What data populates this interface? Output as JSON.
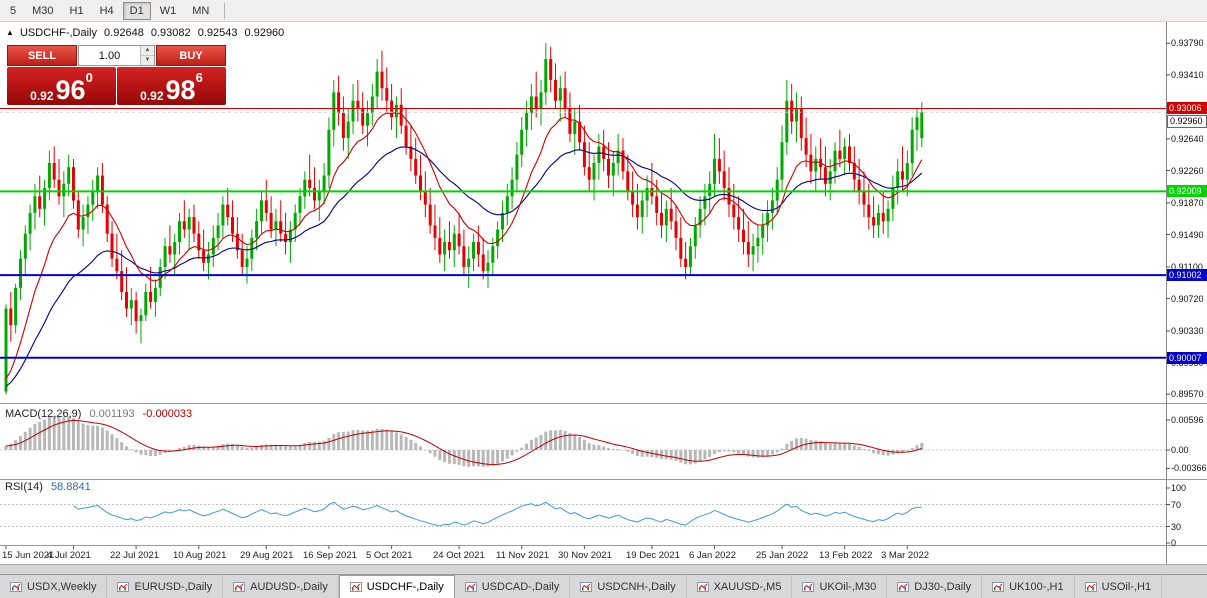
{
  "toolbar": {
    "timeframes": [
      {
        "label": "5",
        "active": false
      },
      {
        "label": "M30",
        "active": false
      },
      {
        "label": "H1",
        "active": false
      },
      {
        "label": "H4",
        "active": false
      },
      {
        "label": "D1",
        "active": true
      },
      {
        "label": "W1",
        "active": false
      },
      {
        "label": "MN",
        "active": false
      }
    ]
  },
  "chart": {
    "info": {
      "collapse_icon": "▲",
      "symbol": "USDCHF-,Daily",
      "open": "0.92648",
      "high": "0.93082",
      "low": "0.92543",
      "close": "0.92960"
    },
    "trade_panel": {
      "sell_label": "SELL",
      "buy_label": "BUY",
      "lot": "1.00",
      "sell_price": {
        "base": "0.92",
        "big": "96",
        "sup": "0"
      },
      "buy_price": {
        "base": "0.92",
        "big": "98",
        "sup": "6"
      }
    },
    "price_axis": {
      "ticks": [
        "0.93790",
        "0.93410",
        "0.93030",
        "0.92640",
        "0.92260",
        "0.91870",
        "0.91490",
        "0.91100",
        "0.90720",
        "0.90330",
        "0.89950",
        "0.89570"
      ]
    },
    "levels": [
      {
        "price": 0.93006,
        "label": "0.93006",
        "color": "#d40000",
        "thickness": 1
      },
      {
        "price": 0.92009,
        "label": "0.92009",
        "color": "#00d500",
        "thickness": 2
      },
      {
        "price": 0.91002,
        "label": "0.91002",
        "color": "#0000d0",
        "thickness": 2
      },
      {
        "price": 0.90007,
        "label": "0.90007",
        "color": "#0000d0",
        "thickness": 2
      }
    ],
    "bid_price": 0.9296,
    "bid_label": "0.92960"
  },
  "macd": {
    "name": "MACD(12,26,9)",
    "value_main": "0.001193",
    "value_signal": "-0.000033",
    "axis": [
      {
        "label": "0.00596",
        "v": 0.00596
      },
      {
        "label": "0.00",
        "v": 0
      },
      {
        "label": "-0.00366",
        "v": -0.00366
      }
    ]
  },
  "rsi": {
    "name": "RSI(14)",
    "value": "58.8841",
    "axis": [
      {
        "label": "100",
        "v": 100
      },
      {
        "label": "70",
        "v": 70
      },
      {
        "label": "30",
        "v": 30
      },
      {
        "label": "0",
        "v": 0
      }
    ],
    "dashed_levels": [
      70,
      30
    ]
  },
  "tabs": [
    {
      "label": "USDX,Weekly",
      "active": false
    },
    {
      "label": "EURUSD-,Daily",
      "active": false
    },
    {
      "label": "AUDUSD-,Daily",
      "active": false
    },
    {
      "label": "USDCHF-,Daily",
      "active": true
    },
    {
      "label": "USDCAD-,Daily",
      "active": false
    },
    {
      "label": "USDCNH-,Daily",
      "active": false
    },
    {
      "label": "XAUUSD-,M5",
      "active": false
    },
    {
      "label": "UKOil-,M30",
      "active": false
    },
    {
      "label": "DJ30-,Daily",
      "active": false
    },
    {
      "label": "UK100-,H1",
      "active": false
    },
    {
      "label": "USOil-,H1",
      "active": false
    }
  ],
  "colors": {
    "bull": "#00a800",
    "bear": "#e60000",
    "ma_fast": "#cc0000",
    "ma_slow": "#000080",
    "macd_hist": "#b8b8b8",
    "macd_signal": "#c00000",
    "rsi_line": "#3f9bd8",
    "axis_text": "#111111",
    "separator": "#999999"
  },
  "chart_data": {
    "type": "candlestick",
    "symbol": "USDCHF-",
    "timeframe": "Daily",
    "y_axis_range": [
      0.895,
      0.9395
    ],
    "x_labels": [
      {
        "label": "15 Jun 2021",
        "i": 0
      },
      {
        "label": "4 Jul 2021",
        "i": 14
      },
      {
        "label": "22 Jul 2021",
        "i": 27
      },
      {
        "label": "10 Aug 2021",
        "i": 40
      },
      {
        "label": "29 Aug 2021",
        "i": 54
      },
      {
        "label": "16 Sep 2021",
        "i": 67
      },
      {
        "label": "5 Oct 2021",
        "i": 80
      },
      {
        "label": "24 Oct 2021",
        "i": 94
      },
      {
        "label": "11 Nov 2021",
        "i": 107
      },
      {
        "label": "30 Nov 2021",
        "i": 120
      },
      {
        "label": "19 Dec 2021",
        "i": 134
      },
      {
        "label": "6 Jan 2022",
        "i": 147
      },
      {
        "label": "25 Jan 2022",
        "i": 161
      },
      {
        "label": "13 Feb 2022",
        "i": 174
      },
      {
        "label": "3 Mar 2022",
        "i": 187
      }
    ],
    "indicators": {
      "ma_fast": {
        "type": "ema",
        "period": 12
      },
      "ma_slow": {
        "type": "ema",
        "period": 30
      },
      "macd": {
        "fast": 12,
        "slow": 26,
        "signal": 9
      },
      "rsi": {
        "period": 14
      }
    },
    "ohlc": [
      [
        0.896,
        0.9065,
        0.8957,
        0.906
      ],
      [
        0.906,
        0.908,
        0.902,
        0.904
      ],
      [
        0.904,
        0.909,
        0.903,
        0.9085
      ],
      [
        0.9085,
        0.913,
        0.907,
        0.912
      ],
      [
        0.912,
        0.916,
        0.91,
        0.915
      ],
      [
        0.915,
        0.9185,
        0.913,
        0.9175
      ],
      [
        0.9175,
        0.921,
        0.9155,
        0.9195
      ],
      [
        0.9195,
        0.922,
        0.917,
        0.918
      ],
      [
        0.918,
        0.9215,
        0.916,
        0.9205
      ],
      [
        0.9205,
        0.925,
        0.919,
        0.9235
      ],
      [
        0.9235,
        0.9255,
        0.9205,
        0.9215
      ],
      [
        0.9215,
        0.924,
        0.9185,
        0.9195
      ],
      [
        0.9195,
        0.9225,
        0.917,
        0.921
      ],
      [
        0.921,
        0.9245,
        0.9195,
        0.923
      ],
      [
        0.923,
        0.924,
        0.918,
        0.919
      ],
      [
        0.919,
        0.92,
        0.9145,
        0.9155
      ],
      [
        0.9155,
        0.9185,
        0.9135,
        0.917
      ],
      [
        0.917,
        0.9195,
        0.915,
        0.9185
      ],
      [
        0.9185,
        0.9215,
        0.9165,
        0.92
      ],
      [
        0.92,
        0.923,
        0.918,
        0.922
      ],
      [
        0.922,
        0.9235,
        0.9175,
        0.9185
      ],
      [
        0.9185,
        0.9195,
        0.914,
        0.915
      ],
      [
        0.915,
        0.9165,
        0.911,
        0.912
      ],
      [
        0.912,
        0.915,
        0.9095,
        0.9105
      ],
      [
        0.9105,
        0.913,
        0.907,
        0.908
      ],
      [
        0.908,
        0.911,
        0.905,
        0.906
      ],
      [
        0.906,
        0.9085,
        0.904,
        0.907
      ],
      [
        0.907,
        0.908,
        0.903,
        0.9045
      ],
      [
        0.9045,
        0.906,
        0.9018,
        0.9052
      ],
      [
        0.9052,
        0.909,
        0.9045,
        0.908
      ],
      [
        0.908,
        0.911,
        0.906,
        0.9068
      ],
      [
        0.9068,
        0.9095,
        0.905,
        0.9085
      ],
      [
        0.9085,
        0.912,
        0.9075,
        0.911
      ],
      [
        0.911,
        0.9145,
        0.9095,
        0.9135
      ],
      [
        0.9135,
        0.916,
        0.9115,
        0.9125
      ],
      [
        0.9125,
        0.915,
        0.91,
        0.914
      ],
      [
        0.914,
        0.9175,
        0.9125,
        0.9165
      ],
      [
        0.9165,
        0.919,
        0.9145,
        0.9155
      ],
      [
        0.9155,
        0.918,
        0.913,
        0.917
      ],
      [
        0.917,
        0.9185,
        0.914,
        0.915
      ],
      [
        0.915,
        0.9165,
        0.912,
        0.913
      ],
      [
        0.913,
        0.9155,
        0.9105,
        0.9115
      ],
      [
        0.9115,
        0.914,
        0.9095,
        0.9125
      ],
      [
        0.9125,
        0.916,
        0.911,
        0.9145
      ],
      [
        0.9145,
        0.9175,
        0.913,
        0.916
      ],
      [
        0.916,
        0.9195,
        0.9145,
        0.9185
      ],
      [
        0.9185,
        0.9205,
        0.916,
        0.917
      ],
      [
        0.917,
        0.919,
        0.914,
        0.915
      ],
      [
        0.915,
        0.917,
        0.912,
        0.913
      ],
      [
        0.913,
        0.915,
        0.91,
        0.911
      ],
      [
        0.911,
        0.9135,
        0.909,
        0.912
      ],
      [
        0.912,
        0.9155,
        0.9105,
        0.9145
      ],
      [
        0.9145,
        0.918,
        0.913,
        0.9165
      ],
      [
        0.9165,
        0.92,
        0.915,
        0.919
      ],
      [
        0.919,
        0.9215,
        0.9165,
        0.9175
      ],
      [
        0.9175,
        0.9195,
        0.9145,
        0.9155
      ],
      [
        0.9155,
        0.918,
        0.9135,
        0.9165
      ],
      [
        0.9165,
        0.919,
        0.914,
        0.915
      ],
      [
        0.915,
        0.9175,
        0.9125,
        0.914
      ],
      [
        0.914,
        0.9165,
        0.9115,
        0.9155
      ],
      [
        0.9155,
        0.9185,
        0.914,
        0.9175
      ],
      [
        0.9175,
        0.9205,
        0.916,
        0.9195
      ],
      [
        0.9195,
        0.9225,
        0.918,
        0.9215
      ],
      [
        0.9215,
        0.9245,
        0.9195,
        0.9205
      ],
      [
        0.9205,
        0.923,
        0.918,
        0.919
      ],
      [
        0.919,
        0.9215,
        0.9165,
        0.92
      ],
      [
        0.92,
        0.9235,
        0.9185,
        0.922
      ],
      [
        0.922,
        0.929,
        0.9205,
        0.9275
      ],
      [
        0.9275,
        0.9335,
        0.9255,
        0.932
      ],
      [
        0.932,
        0.934,
        0.928,
        0.9295
      ],
      [
        0.9295,
        0.9315,
        0.925,
        0.9265
      ],
      [
        0.9265,
        0.93,
        0.924,
        0.9285
      ],
      [
        0.9285,
        0.933,
        0.927,
        0.931
      ],
      [
        0.931,
        0.9335,
        0.9285,
        0.93
      ],
      [
        0.93,
        0.932,
        0.927,
        0.928
      ],
      [
        0.928,
        0.931,
        0.9255,
        0.9295
      ],
      [
        0.9295,
        0.933,
        0.928,
        0.9315
      ],
      [
        0.9315,
        0.936,
        0.93,
        0.9345
      ],
      [
        0.9345,
        0.937,
        0.931,
        0.9325
      ],
      [
        0.9325,
        0.935,
        0.9295,
        0.931
      ],
      [
        0.931,
        0.933,
        0.9275,
        0.929
      ],
      [
        0.929,
        0.9315,
        0.9265,
        0.9305
      ],
      [
        0.9305,
        0.9325,
        0.927,
        0.928
      ],
      [
        0.928,
        0.93,
        0.9245,
        0.9255
      ],
      [
        0.9255,
        0.928,
        0.9225,
        0.924
      ],
      [
        0.924,
        0.9265,
        0.921,
        0.922
      ],
      [
        0.922,
        0.9245,
        0.919,
        0.92
      ],
      [
        0.92,
        0.9225,
        0.917,
        0.9185
      ],
      [
        0.9185,
        0.9205,
        0.915,
        0.916
      ],
      [
        0.916,
        0.9185,
        0.913,
        0.9145
      ],
      [
        0.9145,
        0.917,
        0.9115,
        0.9125
      ],
      [
        0.9125,
        0.9155,
        0.9105,
        0.914
      ],
      [
        0.914,
        0.9165,
        0.912,
        0.913
      ],
      [
        0.913,
        0.916,
        0.911,
        0.915
      ],
      [
        0.915,
        0.9175,
        0.9125,
        0.9135
      ],
      [
        0.9135,
        0.9155,
        0.91,
        0.911
      ],
      [
        0.911,
        0.9135,
        0.9085,
        0.912
      ],
      [
        0.912,
        0.915,
        0.9105,
        0.914
      ],
      [
        0.914,
        0.916,
        0.911,
        0.9125
      ],
      [
        0.9125,
        0.9145,
        0.9095,
        0.9105
      ],
      [
        0.9105,
        0.913,
        0.9085,
        0.9115
      ],
      [
        0.9115,
        0.9145,
        0.91,
        0.9135
      ],
      [
        0.9135,
        0.9165,
        0.912,
        0.9155
      ],
      [
        0.9155,
        0.919,
        0.914,
        0.9175
      ],
      [
        0.9175,
        0.921,
        0.916,
        0.9195
      ],
      [
        0.9195,
        0.923,
        0.918,
        0.9215
      ],
      [
        0.9215,
        0.926,
        0.92,
        0.9245
      ],
      [
        0.9245,
        0.929,
        0.923,
        0.9275
      ],
      [
        0.9275,
        0.931,
        0.9255,
        0.9295
      ],
      [
        0.9295,
        0.933,
        0.9275,
        0.9315
      ],
      [
        0.9315,
        0.9345,
        0.929,
        0.93
      ],
      [
        0.93,
        0.9335,
        0.928,
        0.932
      ],
      [
        0.932,
        0.9379,
        0.9305,
        0.936
      ],
      [
        0.936,
        0.9375,
        0.932,
        0.9335
      ],
      [
        0.9335,
        0.9355,
        0.93,
        0.931
      ],
      [
        0.931,
        0.934,
        0.9285,
        0.9325
      ],
      [
        0.9325,
        0.9345,
        0.929,
        0.93
      ],
      [
        0.93,
        0.932,
        0.926,
        0.927
      ],
      [
        0.927,
        0.93,
        0.9245,
        0.9285
      ],
      [
        0.9285,
        0.9305,
        0.925,
        0.926
      ],
      [
        0.926,
        0.928,
        0.922,
        0.923
      ],
      [
        0.923,
        0.926,
        0.92,
        0.9215
      ],
      [
        0.9215,
        0.9245,
        0.919,
        0.9235
      ],
      [
        0.9235,
        0.927,
        0.9215,
        0.9255
      ],
      [
        0.9255,
        0.9275,
        0.9225,
        0.924
      ],
      [
        0.924,
        0.926,
        0.9205,
        0.922
      ],
      [
        0.922,
        0.925,
        0.9195,
        0.9235
      ],
      [
        0.9235,
        0.927,
        0.922,
        0.925
      ],
      [
        0.925,
        0.9265,
        0.9215,
        0.9225
      ],
      [
        0.9225,
        0.9245,
        0.919,
        0.92
      ],
      [
        0.92,
        0.9225,
        0.917,
        0.9185
      ],
      [
        0.9185,
        0.921,
        0.9155,
        0.917
      ],
      [
        0.917,
        0.92,
        0.915,
        0.919
      ],
      [
        0.919,
        0.922,
        0.917,
        0.9205
      ],
      [
        0.9205,
        0.9235,
        0.9185,
        0.9195
      ],
      [
        0.9195,
        0.9215,
        0.916,
        0.9175
      ],
      [
        0.9175,
        0.92,
        0.9145,
        0.916
      ],
      [
        0.916,
        0.919,
        0.914,
        0.918
      ],
      [
        0.918,
        0.9205,
        0.9155,
        0.9165
      ],
      [
        0.9165,
        0.9185,
        0.913,
        0.9145
      ],
      [
        0.9145,
        0.917,
        0.911,
        0.912
      ],
      [
        0.912,
        0.914,
        0.9095,
        0.911
      ],
      [
        0.911,
        0.9145,
        0.91,
        0.9135
      ],
      [
        0.9135,
        0.917,
        0.912,
        0.916
      ],
      [
        0.916,
        0.9195,
        0.9145,
        0.918
      ],
      [
        0.918,
        0.921,
        0.916,
        0.9195
      ],
      [
        0.9195,
        0.9225,
        0.9175,
        0.921
      ],
      [
        0.921,
        0.927,
        0.9195,
        0.924
      ],
      [
        0.924,
        0.9265,
        0.921,
        0.9225
      ],
      [
        0.9225,
        0.925,
        0.919,
        0.9205
      ],
      [
        0.9205,
        0.923,
        0.917,
        0.9185
      ],
      [
        0.9185,
        0.921,
        0.9155,
        0.917
      ],
      [
        0.917,
        0.9195,
        0.914,
        0.9155
      ],
      [
        0.9155,
        0.918,
        0.9125,
        0.914
      ],
      [
        0.914,
        0.9165,
        0.911,
        0.9125
      ],
      [
        0.9125,
        0.915,
        0.9105,
        0.9135
      ],
      [
        0.9135,
        0.916,
        0.9115,
        0.9145
      ],
      [
        0.9145,
        0.9175,
        0.9125,
        0.916
      ],
      [
        0.916,
        0.919,
        0.914,
        0.9175
      ],
      [
        0.9175,
        0.9205,
        0.9155,
        0.919
      ],
      [
        0.919,
        0.923,
        0.9175,
        0.9215
      ],
      [
        0.9215,
        0.928,
        0.92,
        0.926
      ],
      [
        0.926,
        0.9335,
        0.9245,
        0.931
      ],
      [
        0.931,
        0.933,
        0.927,
        0.9285
      ],
      [
        0.9285,
        0.932,
        0.926,
        0.93
      ],
      [
        0.93,
        0.9315,
        0.925,
        0.9265
      ],
      [
        0.9265,
        0.929,
        0.923,
        0.9245
      ],
      [
        0.9245,
        0.927,
        0.921,
        0.9225
      ],
      [
        0.9225,
        0.9255,
        0.92,
        0.924
      ],
      [
        0.924,
        0.9265,
        0.9215,
        0.923
      ],
      [
        0.923,
        0.9255,
        0.9195,
        0.921
      ],
      [
        0.921,
        0.924,
        0.919,
        0.9225
      ],
      [
        0.9225,
        0.926,
        0.921,
        0.925
      ],
      [
        0.925,
        0.9275,
        0.923,
        0.924
      ],
      [
        0.924,
        0.9265,
        0.922,
        0.9255
      ],
      [
        0.9255,
        0.927,
        0.9225,
        0.9235
      ],
      [
        0.9235,
        0.9255,
        0.92,
        0.9215
      ],
      [
        0.9215,
        0.924,
        0.9185,
        0.92
      ],
      [
        0.92,
        0.9225,
        0.917,
        0.9185
      ],
      [
        0.9185,
        0.921,
        0.9155,
        0.917
      ],
      [
        0.917,
        0.9195,
        0.9145,
        0.916
      ],
      [
        0.916,
        0.9185,
        0.9145,
        0.9175
      ],
      [
        0.9175,
        0.92,
        0.915,
        0.9165
      ],
      [
        0.9165,
        0.919,
        0.9145,
        0.918
      ],
      [
        0.918,
        0.922,
        0.9165,
        0.9205
      ],
      [
        0.9205,
        0.924,
        0.9185,
        0.9225
      ],
      [
        0.9225,
        0.9255,
        0.92,
        0.9215
      ],
      [
        0.9215,
        0.925,
        0.9195,
        0.9235
      ],
      [
        0.9235,
        0.929,
        0.922,
        0.9275
      ],
      [
        0.9275,
        0.93,
        0.925,
        0.929
      ],
      [
        0.92648,
        0.93082,
        0.92543,
        0.9296
      ]
    ]
  }
}
